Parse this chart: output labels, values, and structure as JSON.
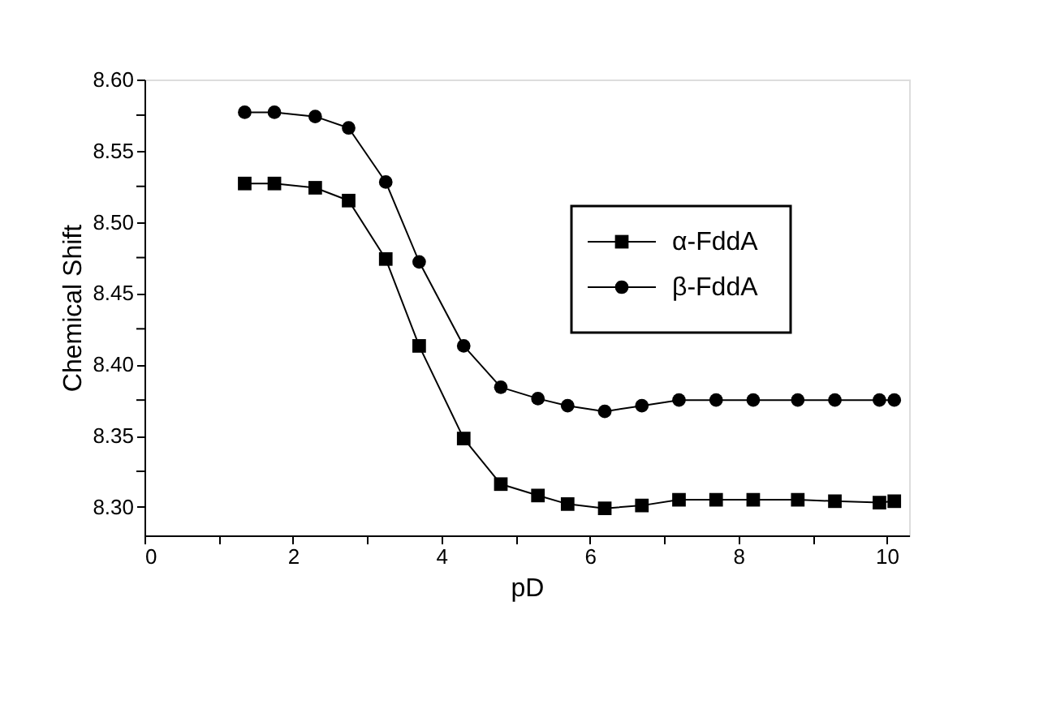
{
  "chart_data": {
    "type": "line",
    "xlabel": "pD",
    "ylabel": "Chemical Shift",
    "x": [
      1.35,
      1.75,
      2.3,
      2.75,
      3.25,
      3.7,
      4.3,
      4.8,
      5.3,
      5.7,
      6.2,
      6.7,
      7.2,
      7.7,
      8.2,
      8.8,
      9.3,
      9.9,
      10.1
    ],
    "series": [
      {
        "name": "α-FddA",
        "color": "#000000",
        "marker": "square",
        "values": [
          8.527,
          8.527,
          8.524,
          8.515,
          8.474,
          8.413,
          8.348,
          8.316,
          8.308,
          8.302,
          8.299,
          8.301,
          8.305,
          8.305,
          8.305,
          8.305,
          8.304,
          8.303,
          8.304
        ]
      },
      {
        "name": "β-FddA",
        "color": "#000000",
        "marker": "circle",
        "values": [
          8.577,
          8.577,
          8.574,
          8.566,
          8.528,
          8.472,
          8.413,
          8.384,
          8.376,
          8.371,
          8.367,
          8.371,
          8.375,
          8.375,
          8.375,
          8.375,
          8.375,
          8.375,
          8.375
        ]
      }
    ],
    "xlim": [
      0,
      10.3
    ],
    "ylim": [
      8.28,
      8.6
    ],
    "xticks": [
      0,
      {
        "value": 1,
        "label": null
      },
      2,
      {
        "value": 3,
        "label": null
      },
      4,
      {
        "value": 5,
        "label": null
      },
      6,
      {
        "value": 7,
        "label": null
      },
      8,
      {
        "value": 9,
        "label": null
      },
      10
    ],
    "yticks": [
      {
        "value": 8.3,
        "label": "8.30"
      },
      {
        "value": 8.325,
        "label": null
      },
      {
        "value": 8.35,
        "label": "8.35"
      },
      {
        "value": 8.375,
        "label": null
      },
      {
        "value": 8.4,
        "label": "8.40"
      },
      {
        "value": 8.425,
        "label": null
      },
      {
        "value": 8.45,
        "label": "8.45"
      },
      {
        "value": 8.475,
        "label": null
      },
      {
        "value": 8.5,
        "label": "8.50"
      },
      {
        "value": 8.525,
        "label": null
      },
      {
        "value": 8.55,
        "label": "8.55"
      },
      {
        "value": 8.575,
        "label": null
      },
      {
        "value": 8.6,
        "label": "8.60"
      }
    ],
    "legend": "top right",
    "grid": false,
    "line_style": "solid"
  }
}
